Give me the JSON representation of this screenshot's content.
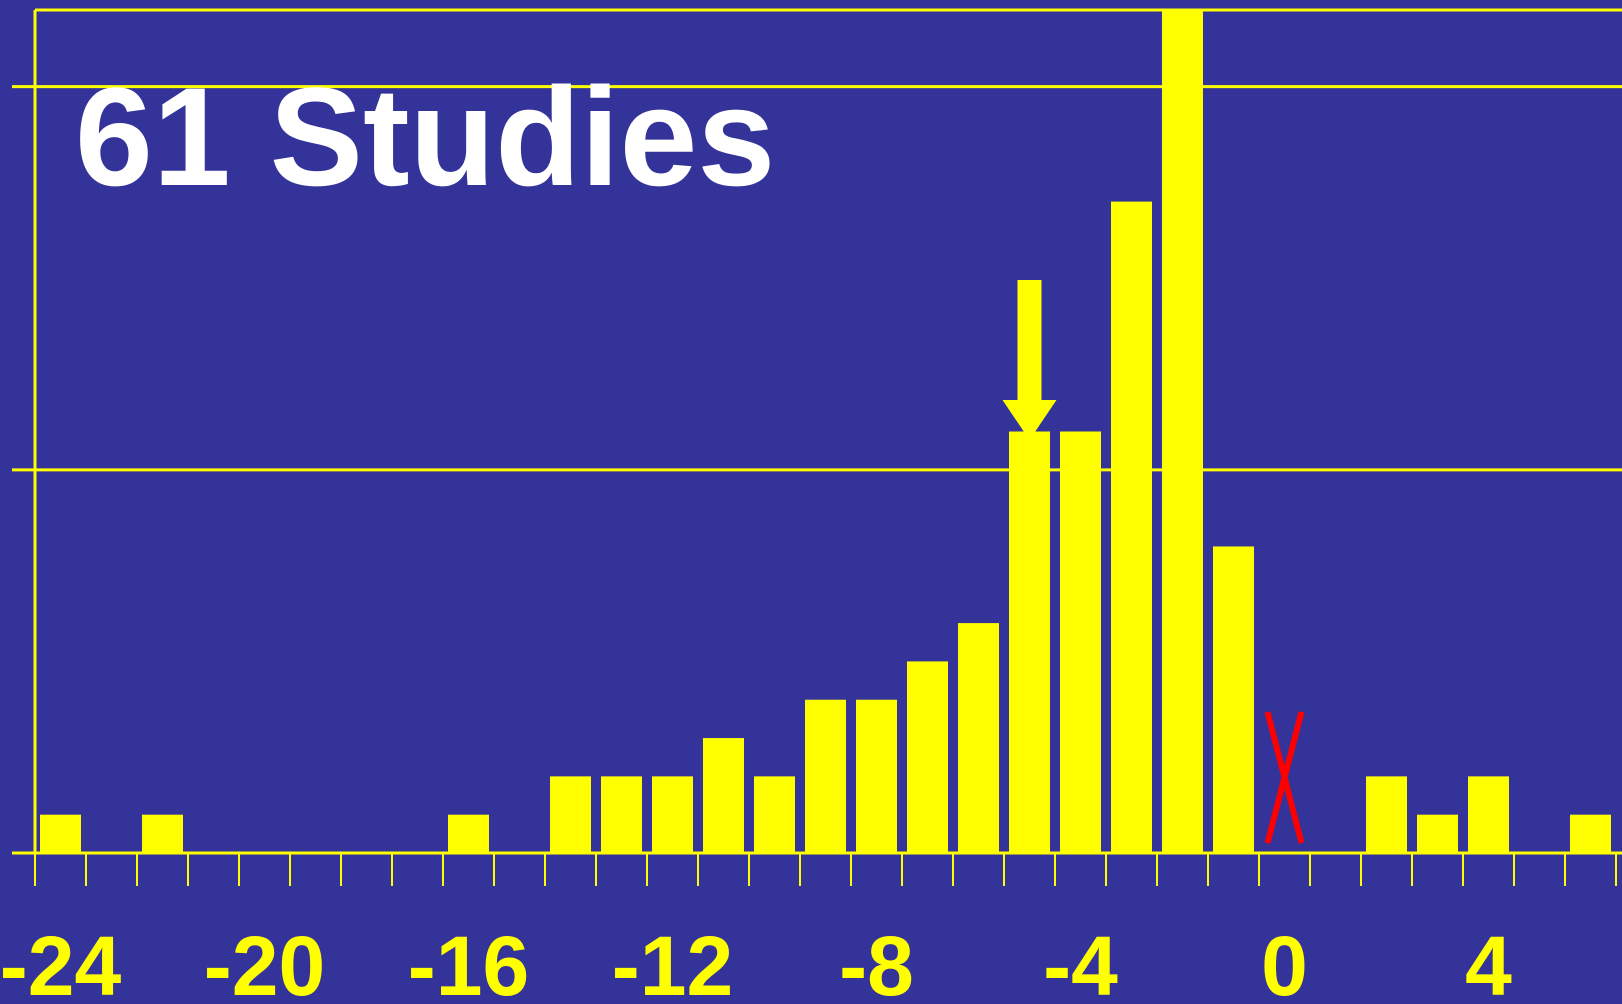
{
  "chart_data": {
    "type": "bar",
    "title": "61 Studies",
    "xlabel": "",
    "ylabel": "",
    "xlim": [
      -24.5,
      6.5
    ],
    "ylim": [
      0,
      11
    ],
    "grid": true,
    "tick_labels": [
      "-24",
      "-20",
      "-16",
      "-12",
      "-8",
      "-4",
      "0",
      "4"
    ],
    "tick_values": [
      -24,
      -20,
      -16,
      -12,
      -8,
      -4,
      0,
      4
    ],
    "x": [
      -24,
      -22,
      -16,
      -14,
      -13,
      -12,
      -11,
      -10,
      -9,
      -8,
      -7,
      -6,
      -5,
      -4,
      -3,
      -2,
      -1,
      2,
      3,
      4,
      6
    ],
    "values": [
      0.5,
      0.5,
      0.5,
      1,
      1,
      1,
      1.5,
      1,
      2,
      2,
      2.5,
      3,
      5.5,
      5.5,
      8.5,
      11,
      4,
      1,
      0.5,
      1,
      0.5
    ],
    "annotations": [
      {
        "type": "arrow",
        "x": -5,
        "meaning": "pointing to bar at -5"
      },
      {
        "type": "x-mark",
        "x": 0,
        "meaning": "no bar at 0"
      }
    ]
  },
  "colors": {
    "background": "#333399",
    "bars": "#FFFF00",
    "grid": "#FFFF00",
    "axis": "#FFFF00",
    "title": "#FFFFFF",
    "x_mark": "#FF0000"
  }
}
